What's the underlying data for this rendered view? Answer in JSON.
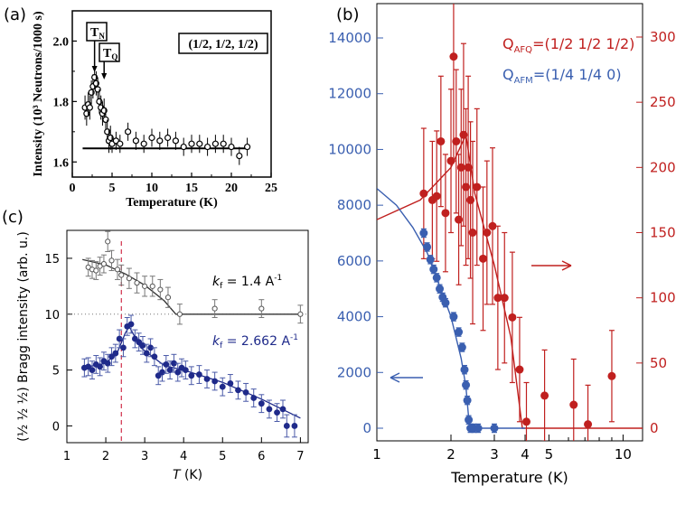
{
  "chart_data": [
    {
      "panel": "(a)",
      "type": "scatter",
      "xlabel": "Temperature (K)",
      "ylabel": "Intensity (10³ Neutrons/1000 s)",
      "xlim": [
        0,
        25
      ],
      "ylim": [
        1.55,
        2.1
      ],
      "x_ticks": [
        "0",
        "5",
        "10",
        "15",
        "20",
        "25"
      ],
      "y_ticks": [
        "1.6",
        "1.8",
        "2.0"
      ],
      "box_label": "(1/2, 1/2, 1/2)",
      "markers": [
        {
          "text": "T",
          "sub": "N",
          "x": 2.8
        },
        {
          "text": "T",
          "sub": "Q",
          "x": 4.0
        }
      ],
      "baseline": 1.645,
      "points": [
        [
          1.6,
          1.78,
          0.04
        ],
        [
          1.8,
          1.76,
          0.04
        ],
        [
          2.0,
          1.79,
          0.04
        ],
        [
          2.2,
          1.78,
          0.04
        ],
        [
          2.4,
          1.83,
          0.04
        ],
        [
          2.6,
          1.85,
          0.04
        ],
        [
          2.8,
          1.88,
          0.04
        ],
        [
          3.0,
          1.86,
          0.04
        ],
        [
          3.2,
          1.84,
          0.04
        ],
        [
          3.4,
          1.8,
          0.04
        ],
        [
          3.6,
          1.78,
          0.04
        ],
        [
          3.8,
          1.76,
          0.04
        ],
        [
          4.0,
          1.77,
          0.04
        ],
        [
          4.2,
          1.74,
          0.04
        ],
        [
          4.4,
          1.7,
          0.04
        ],
        [
          4.6,
          1.67,
          0.04
        ],
        [
          4.8,
          1.68,
          0.04
        ],
        [
          5.0,
          1.66,
          0.03
        ],
        [
          5.5,
          1.67,
          0.03
        ],
        [
          6.0,
          1.66,
          0.03
        ],
        [
          7.0,
          1.7,
          0.03
        ],
        [
          8.0,
          1.67,
          0.03
        ],
        [
          9.0,
          1.66,
          0.03
        ],
        [
          10.0,
          1.68,
          0.03
        ],
        [
          11.0,
          1.67,
          0.03
        ],
        [
          12.0,
          1.68,
          0.03
        ],
        [
          13.0,
          1.67,
          0.03
        ],
        [
          14.0,
          1.65,
          0.03
        ],
        [
          15.0,
          1.66,
          0.03
        ],
        [
          16.0,
          1.66,
          0.03
        ],
        [
          17.0,
          1.65,
          0.03
        ],
        [
          18.0,
          1.66,
          0.03
        ],
        [
          19.0,
          1.66,
          0.03
        ],
        [
          20.0,
          1.65,
          0.03
        ],
        [
          21.0,
          1.62,
          0.03
        ],
        [
          22.0,
          1.65,
          0.03
        ]
      ]
    },
    {
      "panel": "(b)",
      "type": "scatter",
      "xlabel": "Temperature (K)",
      "xscale": "log",
      "xlim": [
        1,
        12
      ],
      "x_ticks": [
        "1",
        "2",
        "3",
        "4",
        "5",
        "10"
      ],
      "left_axis": {
        "ylim": [
          0,
          14500
        ],
        "ticks": [
          "0",
          "2000",
          "4000",
          "6000",
          "8000",
          "10000",
          "12000",
          "14000"
        ],
        "color": "#3a5fb0"
      },
      "right_axis": {
        "ylim": [
          0,
          302
        ],
        "ticks": [
          "0",
          "50",
          "100",
          "150",
          "200",
          "250",
          "300"
        ],
        "color": "#c0201f"
      },
      "legend": [
        {
          "main": "Q",
          "sub": "AFQ",
          "rest": "=(1/2 1/2 1/2)",
          "color": "#c0201f"
        },
        {
          "main": "Q",
          "sub": "AFM",
          "rest": "=(1/4 1/4 0)",
          "color": "#3a5fb0"
        }
      ],
      "series": [
        {
          "name": "Q_AFQ=(1/2 1/2 1/2)",
          "color": "#c0201f",
          "axis": "right",
          "points": [
            [
              1.55,
              180,
              50
            ],
            [
              1.68,
              175,
              45
            ],
            [
              1.75,
              178,
              50
            ],
            [
              1.82,
              220,
              50
            ],
            [
              1.9,
              165,
              45
            ],
            [
              2.0,
              205,
              55
            ],
            [
              2.05,
              285,
              80
            ],
            [
              2.1,
              220,
              55
            ],
            [
              2.15,
              160,
              50
            ],
            [
              2.2,
              200,
              60
            ],
            [
              2.25,
              225,
              70
            ],
            [
              2.3,
              185,
              60
            ],
            [
              2.35,
              200,
              70
            ],
            [
              2.4,
              175,
              60
            ],
            [
              2.45,
              150,
              70
            ],
            [
              2.55,
              185,
              60
            ],
            [
              2.7,
              130,
              55
            ],
            [
              2.8,
              150,
              55
            ],
            [
              2.95,
              155,
              60
            ],
            [
              3.1,
              100,
              55
            ],
            [
              3.3,
              100,
              50
            ],
            [
              3.55,
              85,
              50
            ],
            [
              3.8,
              45,
              40
            ],
            [
              4.05,
              5,
              30
            ],
            [
              4.8,
              25,
              35
            ],
            [
              6.3,
              18,
              35
            ],
            [
              7.2,
              3,
              30
            ],
            [
              9.0,
              40,
              35
            ]
          ],
          "fit": [
            [
              1,
              160
            ],
            [
              1.5,
              175
            ],
            [
              2.0,
              200
            ],
            [
              2.3,
              225
            ],
            [
              2.5,
              180
            ],
            [
              3.0,
              125
            ],
            [
              3.5,
              70
            ],
            [
              3.9,
              0
            ],
            [
              12,
              0
            ]
          ]
        },
        {
          "name": "Q_AFM=(1/4 1/4 0)",
          "color": "#3a5fb0",
          "axis": "left",
          "points": [
            [
              1.55,
              7000,
              150
            ],
            [
              1.6,
              6500,
              150
            ],
            [
              1.65,
              6050,
              150
            ],
            [
              1.7,
              5700,
              150
            ],
            [
              1.75,
              5400,
              150
            ],
            [
              1.8,
              5000,
              150
            ],
            [
              1.85,
              4700,
              150
            ],
            [
              1.9,
              4500,
              150
            ],
            [
              2.05,
              4000,
              150
            ],
            [
              2.15,
              3450,
              150
            ],
            [
              2.22,
              2900,
              150
            ],
            [
              2.27,
              2100,
              150
            ],
            [
              2.3,
              1550,
              150
            ],
            [
              2.33,
              1000,
              150
            ],
            [
              2.36,
              300,
              150
            ],
            [
              2.4,
              0,
              150
            ],
            [
              2.48,
              0,
              150
            ],
            [
              2.58,
              0,
              150
            ],
            [
              3.0,
              0,
              150
            ]
          ],
          "fit": [
            [
              1,
              8600
            ],
            [
              1.2,
              8000
            ],
            [
              1.4,
              7200
            ],
            [
              1.6,
              6300
            ],
            [
              1.8,
              5100
            ],
            [
              2.0,
              4000
            ],
            [
              2.2,
              2500
            ],
            [
              2.3,
              1500
            ],
            [
              2.38,
              0
            ],
            [
              4,
              0
            ]
          ]
        }
      ],
      "arrows": [
        {
          "direction": "left",
          "axis": "left"
        },
        {
          "direction": "right",
          "axis": "right"
        }
      ]
    },
    {
      "panel": "(c)",
      "type": "scatter",
      "xlabel": "T (K)",
      "ylabel": "(½ ½ ½) Bragg intensity (arb. u.)",
      "xlim": [
        1,
        7.2
      ],
      "ylim": [
        -1.5,
        17.5
      ],
      "x_ticks": [
        "1",
        "2",
        "3",
        "4",
        "5",
        "6",
        "7"
      ],
      "y_ticks": [
        "0",
        "5",
        "10",
        "15"
      ],
      "dashed_x": 2.4,
      "dotted_y": 10,
      "series": [
        {
          "name": "k_f = 1.4 Å^-1",
          "label_main": "k",
          "label_sub": "f",
          "label_rest": " = 1.4 A",
          "label_sup": "-1",
          "color": "#555555",
          "points": [
            [
              1.55,
              14.2,
              0.8
            ],
            [
              1.65,
              14.0,
              0.8
            ],
            [
              1.75,
              13.9,
              0.8
            ],
            [
              1.85,
              14.3,
              0.8
            ],
            [
              1.95,
              14.5,
              0.8
            ],
            [
              2.05,
              16.5,
              0.9
            ],
            [
              2.15,
              14.8,
              0.9
            ],
            [
              2.3,
              14.0,
              0.9
            ],
            [
              2.4,
              13.5,
              0.9
            ],
            [
              2.6,
              13.2,
              0.9
            ],
            [
              2.8,
              12.8,
              0.9
            ],
            [
              3.0,
              12.5,
              0.9
            ],
            [
              3.2,
              12.5,
              0.9
            ],
            [
              3.4,
              12.2,
              0.9
            ],
            [
              3.6,
              11.5,
              0.9
            ],
            [
              3.9,
              10.0,
              0.9
            ],
            [
              4.8,
              10.5,
              0.8
            ],
            [
              6.0,
              10.5,
              0.8
            ],
            [
              7.0,
              10.0,
              0.8
            ]
          ],
          "fit": [
            [
              1.4,
              14.9
            ],
            [
              2.0,
              14.4
            ],
            [
              2.5,
              13.6
            ],
            [
              3.0,
              12.6
            ],
            [
              3.5,
              11.2
            ],
            [
              3.8,
              10.0
            ],
            [
              7.0,
              10.0
            ]
          ]
        },
        {
          "name": "k_f = 2.662 Å^-1",
          "label_main": "k",
          "label_sub": "f",
          "label_rest": " = 2.662 A",
          "label_sup": "-1",
          "color": "#1f2a8a",
          "points": [
            [
              1.45,
              5.2,
              0.8
            ],
            [
              1.55,
              5.3,
              0.8
            ],
            [
              1.65,
              5.0,
              0.8
            ],
            [
              1.75,
              5.5,
              0.8
            ],
            [
              1.85,
              5.3,
              0.8
            ],
            [
              1.95,
              5.8,
              0.8
            ],
            [
              2.05,
              5.6,
              0.8
            ],
            [
              2.15,
              6.2,
              0.8
            ],
            [
              2.25,
              6.5,
              0.8
            ],
            [
              2.35,
              7.8,
              0.8
            ],
            [
              2.45,
              7.0,
              0.8
            ],
            [
              2.55,
              8.9,
              0.8
            ],
            [
              2.65,
              9.1,
              0.8
            ],
            [
              2.75,
              7.8,
              0.8
            ],
            [
              2.85,
              7.5,
              0.8
            ],
            [
              2.95,
              7.2,
              0.8
            ],
            [
              3.05,
              6.5,
              0.8
            ],
            [
              3.15,
              7.0,
              0.8
            ],
            [
              3.25,
              6.2,
              0.8
            ],
            [
              3.35,
              4.5,
              0.8
            ],
            [
              3.45,
              4.8,
              0.8
            ],
            [
              3.55,
              5.5,
              0.8
            ],
            [
              3.65,
              5.0,
              0.8
            ],
            [
              3.75,
              5.6,
              0.8
            ],
            [
              3.85,
              4.8,
              0.8
            ],
            [
              3.95,
              5.2,
              0.8
            ],
            [
              4.05,
              5.0,
              0.8
            ],
            [
              4.2,
              4.5,
              0.8
            ],
            [
              4.4,
              4.6,
              0.8
            ],
            [
              4.6,
              4.2,
              0.8
            ],
            [
              4.8,
              4.0,
              0.8
            ],
            [
              5.0,
              3.5,
              0.8
            ],
            [
              5.2,
              3.8,
              0.8
            ],
            [
              5.4,
              3.2,
              0.8
            ],
            [
              5.6,
              3.0,
              0.8
            ],
            [
              5.8,
              2.5,
              0.8
            ],
            [
              6.0,
              2.0,
              0.8
            ],
            [
              6.2,
              1.5,
              0.8
            ],
            [
              6.4,
              1.2,
              0.8
            ],
            [
              6.55,
              1.5,
              0.8
            ],
            [
              6.65,
              0.0,
              1.0
            ],
            [
              6.85,
              0.0,
              1.0
            ]
          ],
          "fit": [
            [
              1.4,
              5.2
            ],
            [
              2.0,
              5.6
            ],
            [
              2.3,
              6.6
            ],
            [
              2.5,
              8.3
            ],
            [
              2.6,
              8.9
            ],
            [
              2.9,
              7.0
            ],
            [
              3.5,
              5.4
            ],
            [
              4.0,
              5.0
            ],
            [
              5.0,
              3.9
            ],
            [
              6.0,
              2.4
            ],
            [
              7.0,
              0.7
            ]
          ]
        }
      ]
    }
  ]
}
